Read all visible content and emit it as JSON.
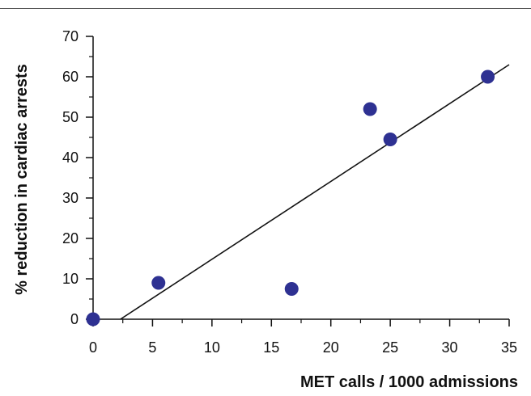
{
  "chart_data": {
    "type": "scatter",
    "title": "",
    "xlabel": "MET calls / 1000 admissions",
    "ylabel": "% reduction in cardiac arrests",
    "xlim": [
      0,
      35
    ],
    "ylim": [
      0,
      70
    ],
    "xticks": [
      0,
      5,
      10,
      15,
      20,
      25,
      30,
      35
    ],
    "yticks": [
      0,
      10,
      20,
      30,
      40,
      50,
      60,
      70
    ],
    "grid": false,
    "marker_color": "#2e3192",
    "series": [
      {
        "points": [
          {
            "x": 0,
            "y": 0
          },
          {
            "x": 5.5,
            "y": 9
          },
          {
            "x": 16.7,
            "y": 7.5
          },
          {
            "x": 23.3,
            "y": 52
          },
          {
            "x": 25,
            "y": 44.5
          },
          {
            "x": 33.2,
            "y": 60
          }
        ]
      }
    ],
    "trendline": {
      "x": [
        2.3,
        35
      ],
      "y": [
        0,
        63
      ]
    }
  }
}
